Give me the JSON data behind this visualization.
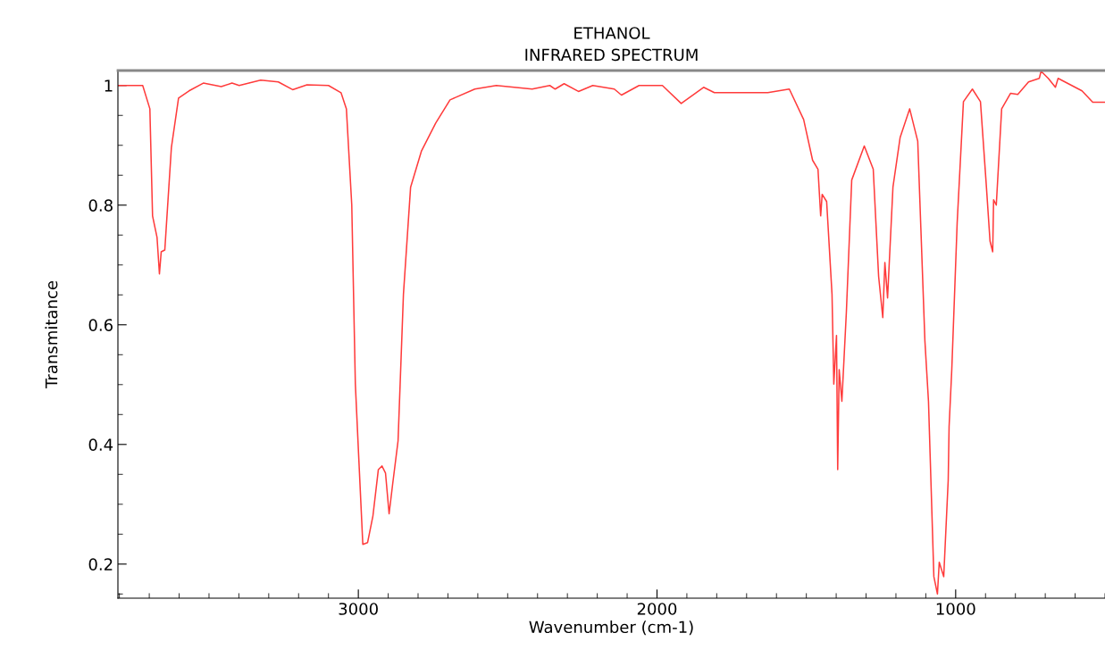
{
  "chart_data": {
    "type": "line",
    "title": "ETHANOL\nINFRARED SPECTRUM",
    "xlabel": "Wavenumber (cm-1)",
    "ylabel": "Transmitance",
    "xlim": [
      3805,
      500
    ],
    "xticks": [
      3000,
      2000,
      1000
    ],
    "ylim": [
      0.143,
      1.025
    ],
    "yticks": [
      0.2,
      0.4,
      0.6,
      0.8,
      1
    ],
    "grid": false,
    "legend": false,
    "marker": "none",
    "line_style": "solid",
    "series": [
      {
        "color": "#ff3b3b",
        "x": [
          3805,
          3722,
          3698,
          3689,
          3674,
          3666,
          3660,
          3648,
          3626,
          3602,
          3567,
          3519,
          3459,
          3423,
          3399,
          3327,
          3268,
          3220,
          3172,
          3100,
          3058,
          3040,
          3022,
          3010,
          2999,
          2985,
          2969,
          2951,
          2933,
          2921,
          2909,
          2897,
          2885,
          2867,
          2849,
          2825,
          2789,
          2741,
          2693,
          2610,
          2538,
          2418,
          2359,
          2341,
          2311,
          2263,
          2215,
          2143,
          2119,
          2060,
          1982,
          1919,
          1844,
          1808,
          1688,
          1629,
          1557,
          1509,
          1479,
          1461,
          1452,
          1447,
          1432,
          1414,
          1408,
          1399,
          1395,
          1390,
          1381,
          1366,
          1348,
          1306,
          1276,
          1258,
          1244,
          1237,
          1228,
          1210,
          1186,
          1154,
          1127,
          1103,
          1091,
          1073,
          1061,
          1055,
          1040,
          1025,
          1022,
          1013,
          995,
          974,
          944,
          917,
          897,
          885,
          876,
          873,
          864,
          846,
          816,
          792,
          756,
          720,
          714,
          690,
          666,
          657,
          577,
          541,
          500
        ],
        "values": [
          1.0,
          1.0,
          0.961,
          0.782,
          0.746,
          0.685,
          0.722,
          0.725,
          0.896,
          0.979,
          0.991,
          1.004,
          0.998,
          1.004,
          1.0,
          1.009,
          1.006,
          0.993,
          1.001,
          1.0,
          0.988,
          0.961,
          0.8,
          0.501,
          0.382,
          0.233,
          0.236,
          0.281,
          0.358,
          0.364,
          0.352,
          0.284,
          0.334,
          0.406,
          0.651,
          0.83,
          0.89,
          0.937,
          0.976,
          0.994,
          1.0,
          0.994,
          1.0,
          0.994,
          1.003,
          0.99,
          1.0,
          0.994,
          0.984,
          1.0,
          1.0,
          0.97,
          0.997,
          0.988,
          0.988,
          0.988,
          0.994,
          0.943,
          0.875,
          0.86,
          0.782,
          0.818,
          0.806,
          0.651,
          0.501,
          0.582,
          0.358,
          0.525,
          0.472,
          0.621,
          0.842,
          0.899,
          0.86,
          0.681,
          0.612,
          0.704,
          0.645,
          0.83,
          0.913,
          0.961,
          0.907,
          0.573,
          0.472,
          0.179,
          0.15,
          0.203,
          0.179,
          0.34,
          0.43,
          0.525,
          0.77,
          0.973,
          0.994,
          0.973,
          0.83,
          0.74,
          0.722,
          0.809,
          0.8,
          0.961,
          0.987,
          0.985,
          1.006,
          1.012,
          1.024,
          1.012,
          0.997,
          1.012,
          0.991,
          0.972,
          0.972
        ]
      }
    ]
  }
}
